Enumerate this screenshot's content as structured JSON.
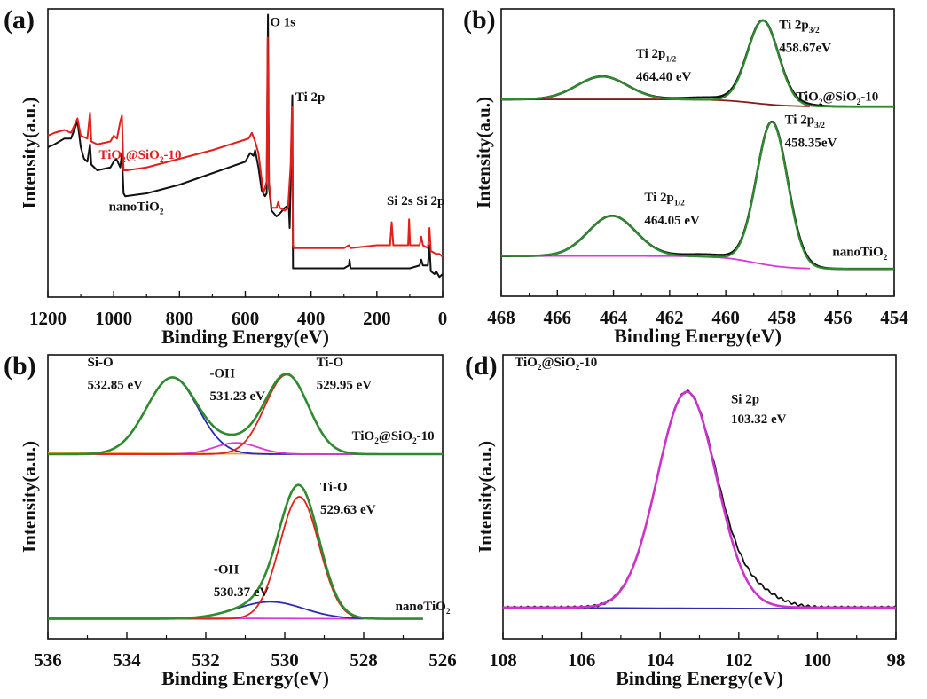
{
  "figure": {
    "panels_count": 4
  },
  "chart_data": [
    {
      "id": "a",
      "panel_label": "(a)",
      "type": "line",
      "title": "",
      "xlabel": "Binding Energy(eV)",
      "ylabel": "Intensity(a.u.)",
      "xlim": [
        1200,
        0
      ],
      "x_reversed": true,
      "ylim": [
        0,
        100
      ],
      "xticks": [
        1200,
        1000,
        800,
        600,
        400,
        200,
        0
      ],
      "grid": false,
      "series": [
        {
          "name": "TiO2@SiO2-10",
          "color": "#e0201c",
          "points": [
            [
              1200,
              56
            ],
            [
              1180,
              57
            ],
            [
              1150,
              58
            ],
            [
              1130,
              57
            ],
            [
              1110,
              62
            ],
            [
              1100,
              56
            ],
            [
              1080,
              55
            ],
            [
              1072,
              64
            ],
            [
              1068,
              54
            ],
            [
              1050,
              53
            ],
            [
              1010,
              54
            ],
            [
              1000,
              56
            ],
            [
              990,
              55
            ],
            [
              980,
              61
            ],
            [
              975,
              63
            ],
            [
              970,
              44
            ],
            [
              960,
              44
            ],
            [
              900,
              45
            ],
            [
              800,
              48
            ],
            [
              700,
              51
            ],
            [
              590,
              55
            ],
            [
              580,
              57
            ],
            [
              570,
              54
            ],
            [
              560,
              50
            ],
            [
              545,
              36
            ],
            [
              535,
              40
            ],
            [
              532,
              90
            ],
            [
              528,
              40
            ],
            [
              520,
              31
            ],
            [
              505,
              31
            ],
            [
              500,
              33
            ],
            [
              495,
              31
            ],
            [
              480,
              30
            ],
            [
              470,
              31
            ],
            [
              462,
              46
            ],
            [
              458,
              66
            ],
            [
              455,
              18
            ],
            [
              452,
              17
            ],
            [
              400,
              17
            ],
            [
              300,
              17
            ],
            [
              285,
              18
            ],
            [
              280,
              17
            ],
            [
              200,
              18
            ],
            [
              160,
              18
            ],
            [
              155,
              26
            ],
            [
              150,
              18
            ],
            [
              105,
              18
            ],
            [
              102,
              27
            ],
            [
              99,
              18
            ],
            [
              70,
              18
            ],
            [
              65,
              21
            ],
            [
              60,
              18
            ],
            [
              45,
              17
            ],
            [
              40,
              24
            ],
            [
              36,
              16
            ],
            [
              20,
              15
            ],
            [
              10,
              15
            ],
            [
              0,
              14
            ]
          ]
        },
        {
          "name": "nanoTiO2",
          "color": "#111111",
          "points": [
            [
              1200,
              52
            ],
            [
              1180,
              53
            ],
            [
              1150,
              55
            ],
            [
              1130,
              55
            ],
            [
              1110,
              61
            ],
            [
              1100,
              52
            ],
            [
              1090,
              48
            ],
            [
              1080,
              47
            ],
            [
              1072,
              53
            ],
            [
              1068,
              46
            ],
            [
              1050,
              44
            ],
            [
              1010,
              45
            ],
            [
              1000,
              47
            ],
            [
              992,
              48
            ],
            [
              980,
              45
            ],
            [
              975,
              50
            ],
            [
              970,
              36
            ],
            [
              965,
              35
            ],
            [
              900,
              36
            ],
            [
              800,
              39
            ],
            [
              700,
              43
            ],
            [
              600,
              47
            ],
            [
              585,
              50
            ],
            [
              575,
              49
            ],
            [
              570,
              51
            ],
            [
              560,
              45
            ],
            [
              550,
              37
            ],
            [
              540,
              35
            ],
            [
              535,
              36
            ],
            [
              531,
              98
            ],
            [
              528,
              38
            ],
            [
              520,
              30
            ],
            [
              505,
              28
            ],
            [
              495,
              29
            ],
            [
              480,
              31
            ],
            [
              468,
              32
            ],
            [
              465,
              24
            ],
            [
              460,
              52
            ],
            [
              457,
              70
            ],
            [
              455,
              10
            ],
            [
              452,
              10
            ],
            [
              400,
              10
            ],
            [
              300,
              10
            ],
            [
              285,
              11
            ],
            [
              283,
              13
            ],
            [
              280,
              10
            ],
            [
              200,
              10
            ],
            [
              100,
              10
            ],
            [
              70,
              11
            ],
            [
              65,
              13
            ],
            [
              60,
              11
            ],
            [
              45,
              11
            ],
            [
              40,
              18
            ],
            [
              36,
              9
            ],
            [
              25,
              8
            ],
            [
              20,
              9
            ],
            [
              10,
              7
            ],
            [
              0,
              8
            ]
          ]
        }
      ],
      "annotations": [
        {
          "text": "O 1s",
          "x": 525,
          "y": 94
        },
        {
          "text": "Ti 2p",
          "x": 448,
          "y": 68
        },
        {
          "text": "Si 2s Si 2p",
          "x": 170,
          "y": 32
        },
        {
          "text_parts": [
            "TiO",
            "2",
            "@SiO",
            "2",
            "-10"
          ],
          "x": 1045,
          "y": 48,
          "color": "#e0201c"
        },
        {
          "text_parts": [
            "nanoTiO",
            "2"
          ],
          "x": 1015,
          "y": 30,
          "color": "#111111"
        }
      ]
    },
    {
      "id": "b-ti2p",
      "panel_label": "(b)",
      "type": "line",
      "title": "",
      "xlabel": "Binding Energy(eV)",
      "ylabel": "Intensity(a.u.)",
      "xlim": [
        468,
        454
      ],
      "x_reversed": true,
      "ylim": [
        0,
        100
      ],
      "xticks": [
        468,
        466,
        464,
        462,
        460,
        458,
        456,
        454
      ],
      "grid": false,
      "spectra": [
        {
          "sample": "TiO2@SiO2-10",
          "peaks": [
            {
              "label": "Ti 2p1/2",
              "center_eV": 464.4,
              "fit_height": 8,
              "width": 0.9
            },
            {
              "label": "Ti 2p3/2",
              "center_eV": 458.67,
              "fit_height": 29,
              "width": 0.55
            }
          ],
          "background": {
            "start": 68.5,
            "end": 66,
            "step_center": 459.0,
            "color": "#8b1a1a"
          },
          "envelope_color": "#2e8b2e",
          "raw_color": "#111111"
        },
        {
          "sample": "nanoTiO2",
          "peaks": [
            {
              "label": "Ti 2p1/2",
              "center_eV": 464.05,
              "fit_height": 14,
              "width": 0.85
            },
            {
              "label": "Ti 2p3/2",
              "center_eV": 458.35,
              "fit_height": 50,
              "width": 0.55
            }
          ],
          "background": {
            "start": 14,
            "end": 9.5,
            "step_center": 459.0,
            "color": "#d63bd6"
          },
          "envelope_color": "#2e8b2e",
          "raw_color": "#111111"
        }
      ],
      "annotations": [
        {
          "text_parts": [
            "Ti 2p",
            "3/2"
          ],
          "x": 458.1,
          "y": 93
        },
        {
          "text": "458.67eV",
          "x": 458.1,
          "y": 85
        },
        {
          "text_parts": [
            "Ti 2p",
            "1/2"
          ],
          "x": 463.2,
          "y": 83
        },
        {
          "text": "464.40 eV",
          "x": 463.2,
          "y": 75
        },
        {
          "text_parts": [
            "TiO",
            "2",
            "@SiO",
            "2",
            "-10"
          ],
          "x": 457.5,
          "y": 68
        },
        {
          "text_parts": [
            "Ti 2p",
            "3/2"
          ],
          "x": 457.9,
          "y": 60
        },
        {
          "text": "458.35eV",
          "x": 457.9,
          "y": 52
        },
        {
          "text_parts": [
            "Ti 2p",
            "1/2"
          ],
          "x": 462.9,
          "y": 33
        },
        {
          "text": "464.05 eV",
          "x": 462.9,
          "y": 25
        },
        {
          "text_parts": [
            "nanoTiO",
            "2"
          ],
          "x": 456.2,
          "y": 14
        }
      ]
    },
    {
      "id": "b-o1s",
      "panel_label": "(b)",
      "type": "line",
      "title": "",
      "xlabel": "Binding Energy(eV)",
      "ylabel": "Intensity(a.u.)",
      "xlim": [
        536,
        526
      ],
      "x_reversed": true,
      "ylim": [
        0,
        100
      ],
      "xticks": [
        536,
        534,
        532,
        530,
        528,
        526
      ],
      "grid": false,
      "spectra": [
        {
          "sample": "TiO2@SiO2-10",
          "baseline": 65,
          "baseline_color": "#f0a030",
          "x_end": 526,
          "components": [
            {
              "label": "Si-O",
              "center_eV": 532.85,
              "height": 27,
              "width": 0.65,
              "color": "#2a2ab8"
            },
            {
              "label": "-OH",
              "center_eV": 531.23,
              "height": 4,
              "width": 0.55,
              "color": "#d63bd6"
            },
            {
              "label": "Ti-O",
              "center_eV": 529.95,
              "height": 28,
              "width": 0.55,
              "color": "#e0201c"
            }
          ],
          "envelope_color": "#2e8b2e"
        },
        {
          "sample": "nanoTiO2",
          "baseline": 7,
          "baseline_color": "#d63bd6",
          "x_end": 526.5,
          "components": [
            {
              "label": "-OH",
              "center_eV": 530.37,
              "height": 6,
              "width": 0.85,
              "color": "#2a2ab8"
            },
            {
              "label": "Ti-O",
              "center_eV": 529.63,
              "height": 43,
              "width": 0.5,
              "color": "#e0201c"
            }
          ],
          "envelope_color": "#2e8b2e"
        }
      ],
      "annotations": [
        {
          "text": "Si-O",
          "x": 535.0,
          "y": 96
        },
        {
          "text": "532.85 eV",
          "x": 535.0,
          "y": 88
        },
        {
          "text": "-OH",
          "x": 531.9,
          "y": 92
        },
        {
          "text": "531.23 eV",
          "x": 531.9,
          "y": 84
        },
        {
          "text": "Ti-O",
          "x": 529.2,
          "y": 96
        },
        {
          "text": "529.95 eV",
          "x": 529.2,
          "y": 88
        },
        {
          "text_parts": [
            "TiO",
            "2",
            "@SiO",
            "2",
            "-10"
          ],
          "x": 528.3,
          "y": 70
        },
        {
          "text": "Ti-O",
          "x": 529.1,
          "y": 52
        },
        {
          "text": "529.63 eV",
          "x": 529.1,
          "y": 44
        },
        {
          "text": "-OH",
          "x": 531.8,
          "y": 23
        },
        {
          "text": "530.37 eV",
          "x": 531.8,
          "y": 15
        },
        {
          "text_parts": [
            "nanoTiO",
            "2"
          ],
          "x": 527.2,
          "y": 10
        }
      ]
    },
    {
      "id": "d",
      "panel_label": "(d)",
      "type": "line",
      "title": "",
      "xlabel": "Binding Energy(eV)",
      "ylabel": "Intensity(a.u.)",
      "xlim": [
        108,
        98
      ],
      "x_reversed": true,
      "ylim": [
        0,
        100
      ],
      "xticks": [
        108,
        106,
        104,
        102,
        100,
        98
      ],
      "grid": false,
      "spectrum": {
        "sample": "TiO2@SiO2-10",
        "baseline": 11,
        "peak": {
          "label": "Si 2p",
          "center_eV": 103.32,
          "height": 76,
          "width": 0.75
        },
        "raw_tail": {
          "extra_height": 5,
          "center_eV": 101.6,
          "width": 0.6
        },
        "raw_color": "#111111",
        "fit_color": "#cc33cc",
        "baseline_color": "#2a2ab8"
      },
      "annotations": [
        {
          "text_parts": [
            "TiO",
            "2",
            "@SiO",
            "2",
            "-10"
          ],
          "x": 107.7,
          "y": 96
        },
        {
          "text": "Si 2p",
          "x": 102.2,
          "y": 83
        },
        {
          "text": "103.32 eV",
          "x": 102.2,
          "y": 76
        }
      ]
    }
  ]
}
